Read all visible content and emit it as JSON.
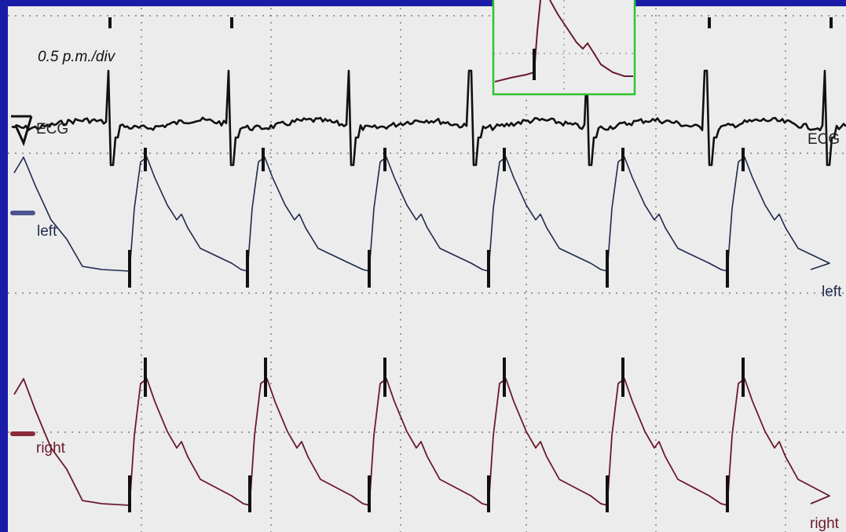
{
  "chart_data": {
    "type": "line",
    "scale_label": "0.5 p.m./div",
    "series": [
      {
        "name": "ECG",
        "color": "#111111"
      },
      {
        "name": "left",
        "color": "#1f2a4a"
      },
      {
        "name": "right",
        "color": "#6b1a2c"
      }
    ],
    "end_labels": {
      "ecg": "ECG",
      "left": "left",
      "right": "right"
    },
    "grid": true,
    "inset": {
      "border_color": "#2ec42e",
      "trace_color": "#6b1a2c"
    }
  }
}
